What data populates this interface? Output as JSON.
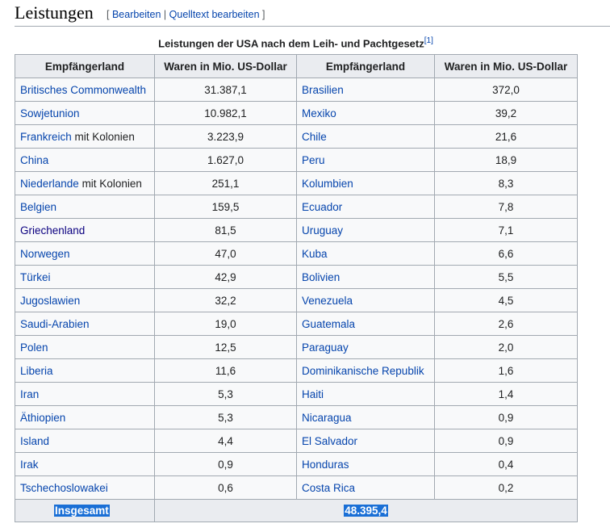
{
  "heading": {
    "title": "Leistungen",
    "bracket_open": "[",
    "edit": "Bearbeiten",
    "separator": "|",
    "edit_source": "Quelltext bearbeiten",
    "bracket_close": "]"
  },
  "caption": {
    "text": "Leistungen der USA nach dem Leih- und Pachtgesetz",
    "ref": "[1]"
  },
  "table": {
    "headers": [
      "Empfängerland",
      "Waren in Mio. US-Dollar",
      "Empfängerland",
      "Waren in Mio. US-Dollar"
    ],
    "rows": [
      {
        "c1": "Britisches Commonwealth",
        "c1_suffix": "",
        "v1": "31.387,1",
        "c2": "Brasilien",
        "v2": "372,0"
      },
      {
        "c1": "Sowjetunion",
        "c1_suffix": "",
        "v1": "10.982,1",
        "c2": "Mexiko",
        "v2": "39,2"
      },
      {
        "c1": "Frankreich",
        "c1_suffix": " mit Kolonien",
        "v1": "3.223,9",
        "c2": "Chile",
        "v2": "21,6"
      },
      {
        "c1": "China",
        "c1_suffix": "",
        "v1": "1.627,0",
        "c2": "Peru",
        "v2": "18,9"
      },
      {
        "c1": "Niederlande",
        "c1_suffix": " mit Kolonien",
        "v1": "251,1",
        "c2": "Kolumbien",
        "v2": "8,3"
      },
      {
        "c1": "Belgien",
        "c1_suffix": "",
        "v1": "159,5",
        "c2": "Ecuador",
        "v2": "7,8"
      },
      {
        "c1": "Griechenland",
        "c1_suffix": "",
        "v1": "81,5",
        "c2": "Uruguay",
        "v2": "7,1"
      },
      {
        "c1": "Norwegen",
        "c1_suffix": "",
        "v1": "47,0",
        "c2": "Kuba",
        "v2": "6,6"
      },
      {
        "c1": "Türkei",
        "c1_suffix": "",
        "v1": "42,9",
        "c2": "Bolivien",
        "v2": "5,5"
      },
      {
        "c1": "Jugoslawien",
        "c1_suffix": "",
        "v1": "32,2",
        "c2": "Venezuela",
        "v2": "4,5"
      },
      {
        "c1": "Saudi-Arabien",
        "c1_suffix": "",
        "v1": "19,0",
        "c2": "Guatemala",
        "v2": "2,6"
      },
      {
        "c1": "Polen",
        "c1_suffix": "",
        "v1": "12,5",
        "c2": "Paraguay",
        "v2": "2,0"
      },
      {
        "c1": "Liberia",
        "c1_suffix": "",
        "v1": "11,6",
        "c2": "Dominikanische Republik",
        "v2": "1,6"
      },
      {
        "c1": "Iran",
        "c1_suffix": "",
        "v1": "5,3",
        "c2": "Haiti",
        "v2": "1,4"
      },
      {
        "c1": "Äthiopien",
        "c1_suffix": "",
        "v1": "5,3",
        "c2": "Nicaragua",
        "v2": "0,9"
      },
      {
        "c1": "Island",
        "c1_suffix": "",
        "v1": "4,4",
        "c2": "El Salvador",
        "v2": "0,9"
      },
      {
        "c1": "Irak",
        "c1_suffix": "",
        "v1": "0,9",
        "c2": "Honduras",
        "v2": "0,4"
      },
      {
        "c1": "Tschechoslowakei",
        "c1_suffix": "",
        "v1": "0,6",
        "c2": "Costa Rica",
        "v2": "0,2"
      }
    ],
    "total": {
      "label": "Insgesamt",
      "value": "48.395,4"
    }
  },
  "colors": {
    "link": "#0645ad",
    "visited_link": "#0b0080",
    "header_bg": "#eaecf0",
    "border": "#a2a9b1",
    "selection": "#1a6fd6"
  }
}
